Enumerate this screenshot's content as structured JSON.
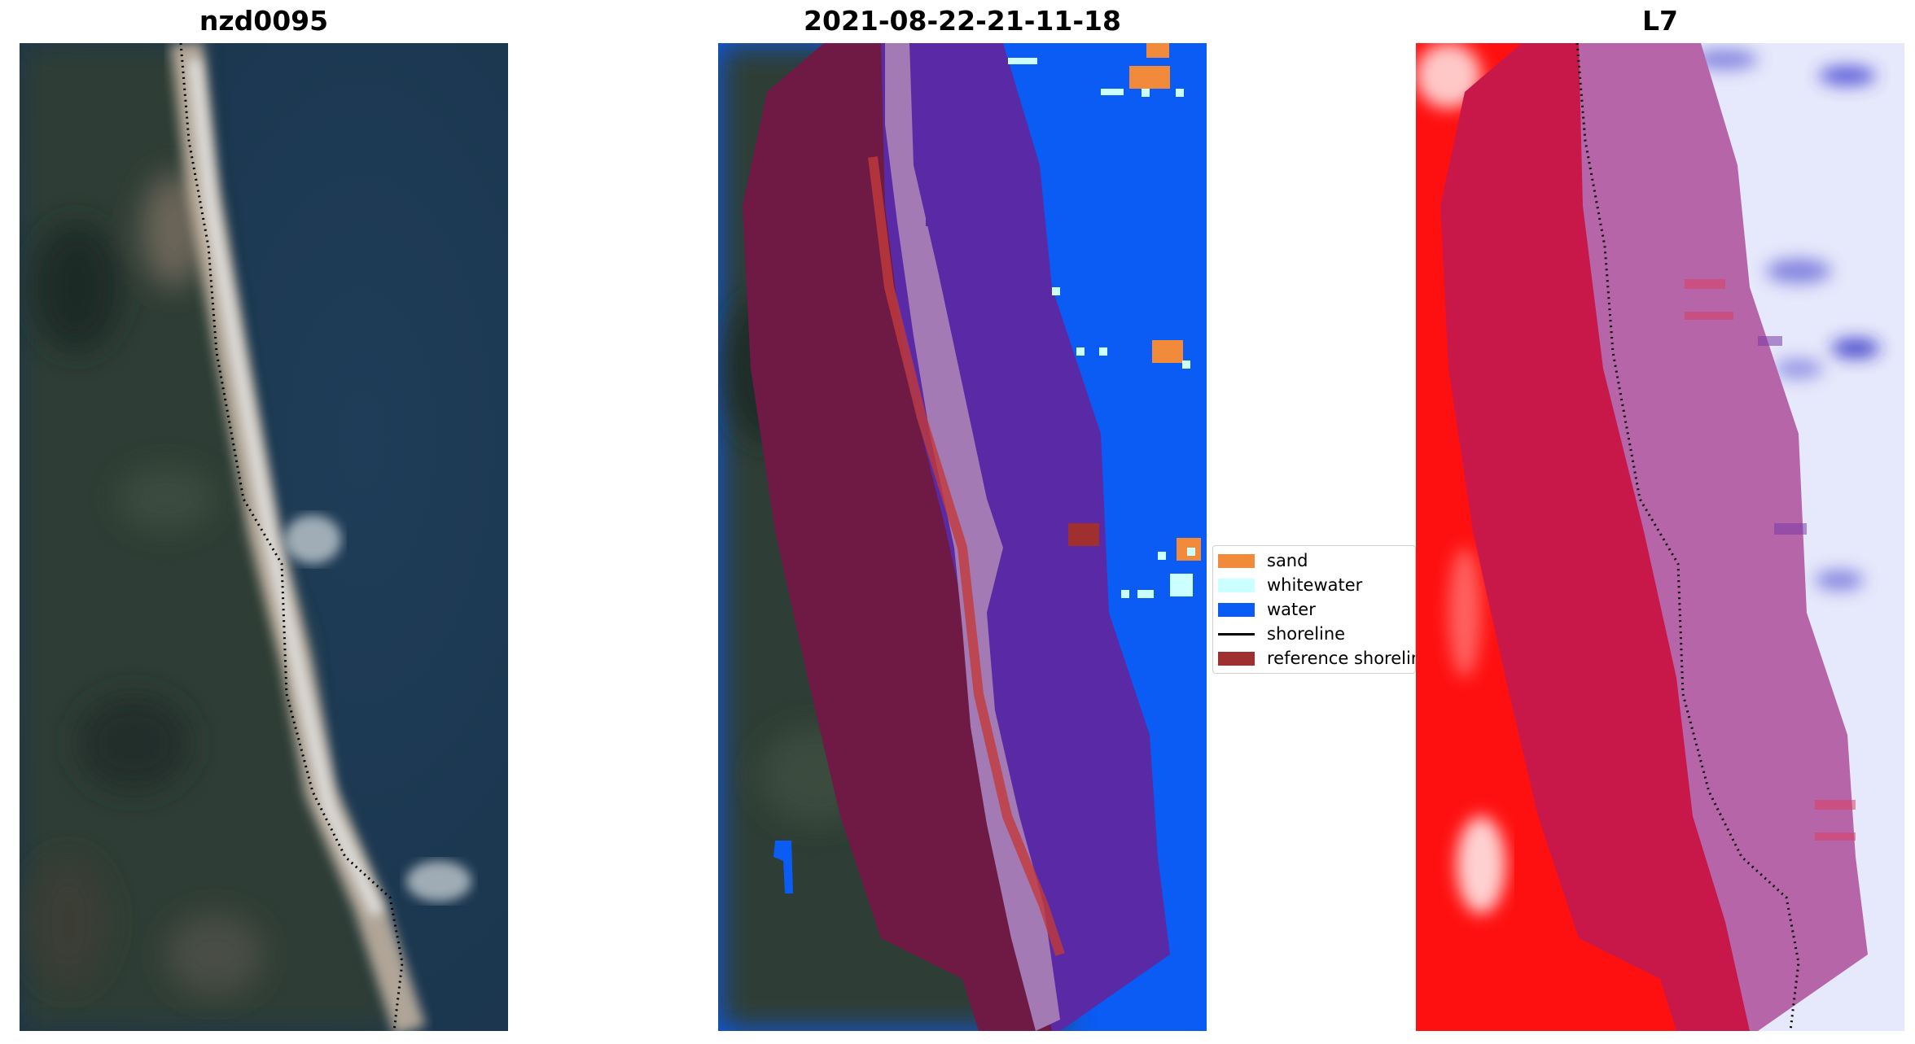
{
  "panels": [
    {
      "title": "nzd0095"
    },
    {
      "title": "2021-08-22-21-11-18"
    },
    {
      "title": "L7"
    }
  ],
  "legend": {
    "items": [
      {
        "label": "sand",
        "color": "#f28a3c",
        "type": "patch"
      },
      {
        "label": "whitewater",
        "color": "#ccffff",
        "type": "patch"
      },
      {
        "label": "water",
        "color": "#0a5cf5",
        "type": "patch"
      },
      {
        "label": "shoreline",
        "color": "#000000",
        "type": "line"
      },
      {
        "label": "reference shoreline",
        "color": "#a03030",
        "type": "patch"
      }
    ]
  },
  "colors": {
    "sea": "#1d3a55",
    "land": "#2d3d36",
    "beach": "#c9b8a6",
    "sand": "#f28a3c",
    "whitewater": "#ccffff",
    "water": "#0a5cf5",
    "reference_zone_land": "#6e1a45",
    "reference_zone_sea": "#5a2aa6",
    "index_land": "#ff1010",
    "index_water": "#e6e8fb"
  }
}
